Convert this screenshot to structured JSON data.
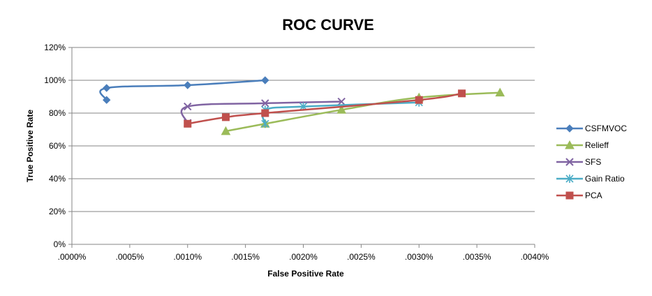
{
  "chart_data": {
    "type": "line",
    "title": "ROC CURVE",
    "xlabel": "False Positive Rate",
    "ylabel": "True Positive Rate",
    "xlim": [
      0,
      0.004
    ],
    "ylim": [
      0,
      1.2
    ],
    "x_ticks": [
      ".0000%",
      ".0005%",
      ".0010%",
      ".0015%",
      ".0020%",
      ".0025%",
      ".0030%",
      ".0035%",
      ".0040%"
    ],
    "x_tick_values": [
      0,
      0.0005,
      0.001,
      0.0015,
      0.002,
      0.0025,
      0.003,
      0.0035,
      0.004
    ],
    "y_ticks": [
      "0%",
      "20%",
      "40%",
      "60%",
      "80%",
      "100%",
      "120%"
    ],
    "y_tick_values": [
      0,
      0.2,
      0.4,
      0.6,
      0.8,
      1.0,
      1.2
    ],
    "grid": "horizontal",
    "legend_position": "right",
    "series": [
      {
        "name": "CSFMVOC",
        "color": "#4a7ebb",
        "marker": "diamond",
        "x": [
          0.0003,
          0.0003,
          0.001,
          0.00167
        ],
        "y": [
          0.88,
          0.953,
          0.97,
          1.0
        ]
      },
      {
        "name": "Relieff",
        "color": "#9bbb59",
        "marker": "triangle",
        "x": [
          0.00133,
          0.00167,
          0.00233,
          0.003,
          0.0037
        ],
        "y": [
          0.69,
          0.735,
          0.82,
          0.895,
          0.925
        ]
      },
      {
        "name": "SFS",
        "color": "#8064a2",
        "marker": "x",
        "x": [
          0.001,
          0.001,
          0.00167,
          0.00233
        ],
        "y": [
          0.74,
          0.84,
          0.86,
          0.87
        ]
      },
      {
        "name": "Gain Ratio",
        "color": "#4bacc6",
        "marker": "star",
        "x": [
          0.00167,
          0.00167,
          0.002,
          0.003
        ],
        "y": [
          0.735,
          0.82,
          0.84,
          0.865
        ]
      },
      {
        "name": "PCA",
        "color": "#c0504d",
        "marker": "square",
        "x": [
          0.001,
          0.00133,
          0.00167,
          0.003,
          0.00337
        ],
        "y": [
          0.735,
          0.775,
          0.8,
          0.88,
          0.92
        ]
      }
    ]
  }
}
